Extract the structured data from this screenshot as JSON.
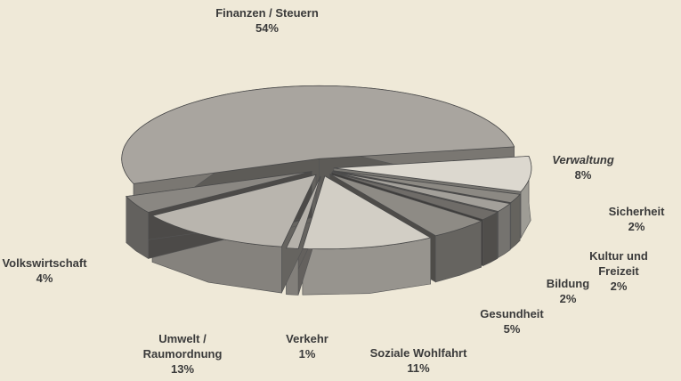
{
  "chart_data": {
    "type": "pie",
    "categories": [
      "Finanzen / Steuern",
      "Verwaltung",
      "Sicherheit",
      "Kultur und Freizeit",
      "Bildung",
      "Gesundheit",
      "Soziale Wohlfahrt",
      "Verkehr",
      "Umwelt / Raumordnung",
      "Volkswirtschaft"
    ],
    "values": [
      54,
      8,
      2,
      2,
      2,
      5,
      11,
      1,
      13,
      4
    ],
    "value_labels": [
      "54%",
      "8%",
      "2%",
      "2%",
      "2%",
      "5%",
      "11%",
      "1%",
      "13%",
      "4%"
    ],
    "colors": [
      "#a9a59f",
      "#dcd8cf",
      "#8c8983",
      "#a3a09a",
      "#6f6c68",
      "#8e8b85",
      "#d2cec5",
      "#b5b1aa",
      "#b9b5ae",
      "#8a8782"
    ]
  }
}
